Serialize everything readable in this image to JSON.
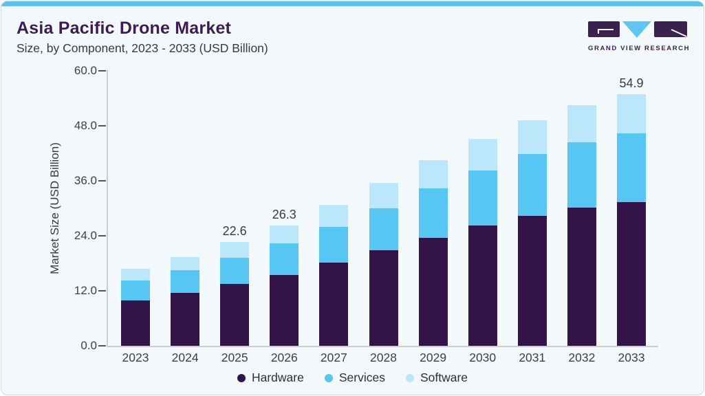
{
  "header": {
    "title": "Asia Pacific Drone Market",
    "subtitle": "Size, by Component, 2023 - 2033 (USD Billion)"
  },
  "brand": {
    "name": "GRAND VIEW RESEARCH",
    "logo_purple": "#3a2150",
    "logo_blue": "#5ec7f0"
  },
  "theme": {
    "accent_strip": "#59c3ef",
    "card_background": "#f3f8fb",
    "title_color": "#3d1c56",
    "text_color": "#3a3a42",
    "axis_line_color": "#c9ced4",
    "tick_color": "#55555e"
  },
  "chart_data": {
    "type": "bar",
    "stacked": true,
    "title": "Asia Pacific Drone Market",
    "subtitle": "Size, by Component, 2023 - 2033 (USD Billion)",
    "xlabel": "",
    "ylabel": "Market Size (USD Billion)",
    "ylim": [
      0,
      60
    ],
    "yticks": [
      0,
      12,
      24,
      36,
      48,
      60
    ],
    "ytick_labels": [
      "0.0",
      "12.0",
      "24.0",
      "36.0",
      "48.0",
      "60.0"
    ],
    "grid": false,
    "legend_position": "bottom",
    "categories": [
      "2023",
      "2024",
      "2025",
      "2026",
      "2027",
      "2028",
      "2029",
      "2030",
      "2031",
      "2032",
      "2033"
    ],
    "series": [
      {
        "name": "Hardware",
        "color": "#321448",
        "values": [
          9.9,
          11.5,
          13.5,
          15.5,
          18.1,
          20.9,
          23.6,
          26.3,
          28.3,
          30.1,
          31.3
        ]
      },
      {
        "name": "Services",
        "color": "#56c7f2",
        "values": [
          4.3,
          5.0,
          5.7,
          6.9,
          7.8,
          9.1,
          10.7,
          12.0,
          13.5,
          14.3,
          15.1
        ]
      },
      {
        "name": "Software",
        "color": "#bce7fa",
        "values": [
          2.6,
          2.8,
          3.4,
          3.9,
          4.9,
          5.5,
          6.2,
          6.9,
          7.4,
          8.1,
          8.5
        ]
      }
    ],
    "totals": [
      16.8,
      19.3,
      22.6,
      26.3,
      30.8,
      35.5,
      40.5,
      45.2,
      49.2,
      52.5,
      54.9
    ],
    "value_labels": [
      "",
      "",
      "22.6",
      "26.3",
      "",
      "",
      "",
      "",
      "",
      "",
      "54.9"
    ]
  }
}
